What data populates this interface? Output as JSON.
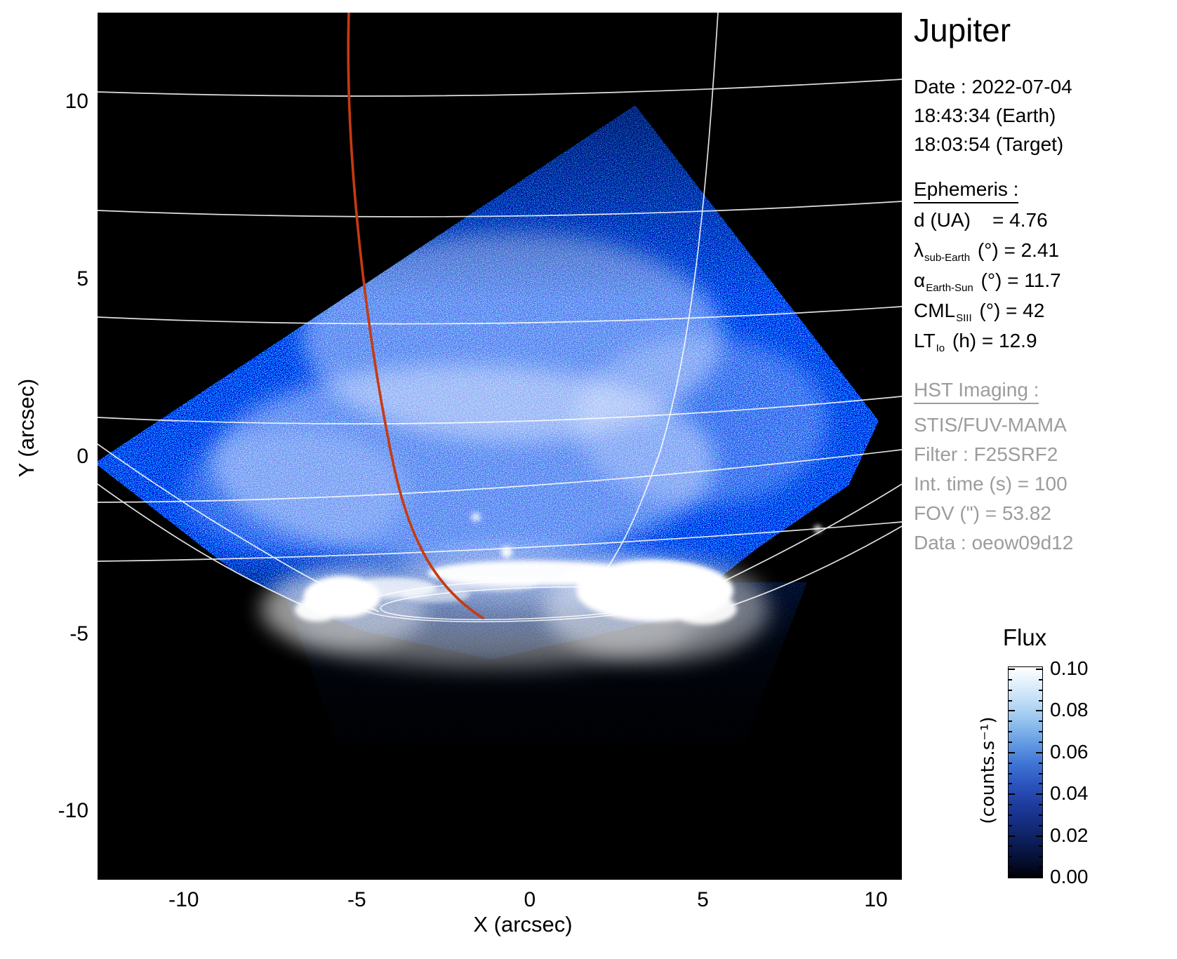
{
  "title": "Jupiter",
  "info": {
    "date_line": "Date : 2022-07-04",
    "time_earth": "18:43:34 (Earth)",
    "time_target": "18:03:54 (Target)",
    "ephemeris_heading": "Ephemeris :",
    "ephemeris_rows": [
      {
        "symbol": "d",
        "sub": "",
        "rest": "(UA)    = 4.76"
      },
      {
        "symbol": "λ",
        "sub": "sub-Earth",
        "rest": "(°) = 2.41"
      },
      {
        "symbol": "α",
        "sub": "Earth-Sun",
        "rest": "(°) = 11.7"
      },
      {
        "symbol": "CML",
        "sub": "SIII",
        "rest": "(°) = 42"
      },
      {
        "symbol": "LT",
        "sub": "Io",
        "rest": "(h) = 12.9"
      }
    ],
    "hst_heading": "HST Imaging :",
    "hst_lines": [
      "STIS/FUV-MAMA",
      "Filter : F25SRF2",
      "Int. time (s) = 100",
      "FOV (\") = 53.82",
      "Data : oeow09d12"
    ]
  },
  "colors": {
    "red_line": "#c63a12",
    "graticule": "#ffffff",
    "hst_text_gray": "#9c9c9c",
    "plot_background": "#000000"
  },
  "chart_data": {
    "type": "heatmap",
    "title": "Jupiter",
    "xlabel": "X (arcsec)",
    "ylabel": "Y (arcsec)",
    "xlim": [
      -12.5,
      10.8
    ],
    "ylim": [
      -11.9,
      12.5
    ],
    "x_ticks": [
      -10,
      -5,
      0,
      5,
      10
    ],
    "x_tick_labels": [
      "-10",
      "-5",
      "0",
      "5",
      "10"
    ],
    "y_ticks": [
      10,
      5,
      0,
      -5,
      -10
    ],
    "y_tick_labels": [
      "10",
      "5",
      "0",
      "-5",
      "-10"
    ],
    "grid": false,
    "legend": "none",
    "colorbar": {
      "title": "Flux",
      "unit": "(counts.s⁻¹)",
      "vmin": 0.0,
      "vmax": 0.1,
      "tick_values": [
        0.1,
        0.08,
        0.06,
        0.04,
        0.02,
        0.0
      ],
      "tick_labels": [
        "0.10",
        "0.08",
        "0.06",
        "0.04",
        "0.02",
        "0.00"
      ],
      "colormap": "black-to-blue-to-white"
    },
    "ephemeris_values": {
      "d_UA": 4.76,
      "lambda_sub_Earth_deg": 2.41,
      "alpha_Earth_Sun_deg": 11.7,
      "CML_SIII_deg": 42,
      "LT_Io_h": 12.9
    },
    "visible_features": {
      "detector_field": "rotated-square STIS field of blue speckle noise, top corner near (3.0, 10.2) arcsec, brightest in the middle, fading to black below the aurora",
      "aurora_band": "bright white auroral emission band near y = -4 arcsec spanning x = -6.5 to 5 arcsec with intense blobs at x = -5.4 and x = 3.6",
      "bright_dots_arcsec": [
        [
          -0.67,
          -2.7
        ],
        [
          -1.56,
          -1.7
        ],
        [
          8.3,
          -2.0
        ]
      ],
      "graticule": "white planetary latitude/longitude grid lines and double auroral oval outline",
      "red_track": "red curved line from (-5.2, 12.5) at top down to (-1.4, -4.5) near the auroral oval"
    }
  }
}
